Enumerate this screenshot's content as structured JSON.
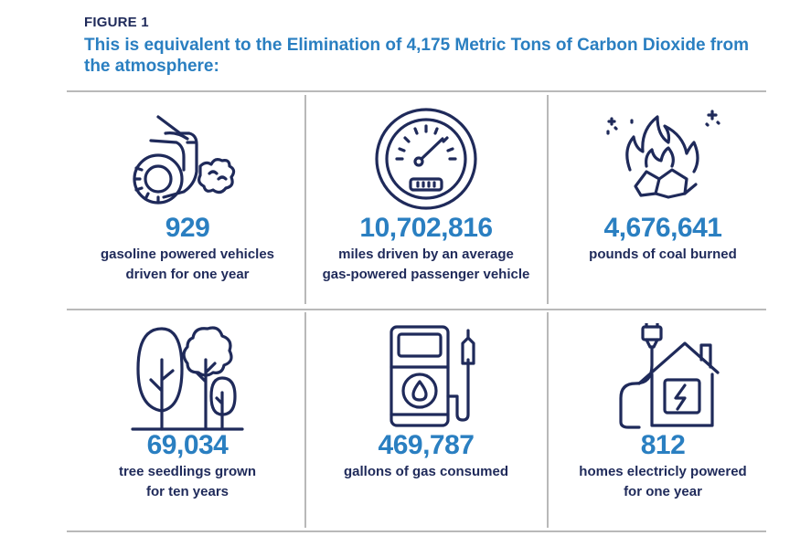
{
  "figure_label": "FIGURE 1",
  "title": "This is equivalent to the Elimination of 4,175 Metric Tons of Carbon Dioxide from the atmosphere:",
  "colors": {
    "accent": "#2a7fc1",
    "navy": "#1f2a5a",
    "rule": "#b9b9b9"
  },
  "items": [
    {
      "icon": "car-exhaust-icon",
      "value": "929",
      "label": "gasoline powered vehicles\ndriven for one year"
    },
    {
      "icon": "speedometer-icon",
      "value": "10,702,816",
      "label": "miles driven by an average\ngas-powered passenger vehicle"
    },
    {
      "icon": "burning-coal-icon",
      "value": "4,676,641",
      "label": "pounds of coal burned"
    },
    {
      "icon": "trees-icon",
      "value": "69,034",
      "label": "tree seedlings grown\nfor ten years"
    },
    {
      "icon": "gas-pump-icon",
      "value": "469,787",
      "label": "gallons of gas consumed"
    },
    {
      "icon": "home-electric-icon",
      "value": "812",
      "label": "homes electricly powered\nfor one year"
    }
  ]
}
